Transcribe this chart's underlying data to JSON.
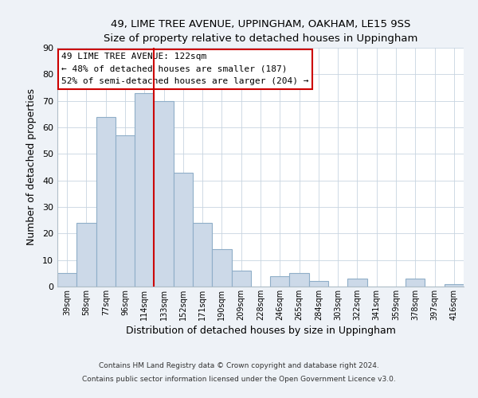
{
  "title1": "49, LIME TREE AVENUE, UPPINGHAM, OAKHAM, LE15 9SS",
  "title2": "Size of property relative to detached houses in Uppingham",
  "xlabel": "Distribution of detached houses by size in Uppingham",
  "ylabel": "Number of detached properties",
  "bar_labels": [
    "39sqm",
    "58sqm",
    "77sqm",
    "96sqm",
    "114sqm",
    "133sqm",
    "152sqm",
    "171sqm",
    "190sqm",
    "209sqm",
    "228sqm",
    "246sqm",
    "265sqm",
    "284sqm",
    "303sqm",
    "322sqm",
    "341sqm",
    "359sqm",
    "378sqm",
    "397sqm",
    "416sqm"
  ],
  "bar_values": [
    5,
    24,
    64,
    57,
    73,
    70,
    43,
    24,
    14,
    6,
    0,
    4,
    5,
    2,
    0,
    3,
    0,
    0,
    3,
    0,
    1
  ],
  "bar_color": "#ccd9e8",
  "bar_edge_color": "#8faec8",
  "vline_color": "#cc0000",
  "annotation_title": "49 LIME TREE AVENUE: 122sqm",
  "annotation_line1": "← 48% of detached houses are smaller (187)",
  "annotation_line2": "52% of semi-detached houses are larger (204) →",
  "annotation_box_color": "#ffffff",
  "annotation_box_edge": "#cc0000",
  "ylim": [
    0,
    90
  ],
  "yticks": [
    0,
    10,
    20,
    30,
    40,
    50,
    60,
    70,
    80,
    90
  ],
  "footer1": "Contains HM Land Registry data © Crown copyright and database right 2024.",
  "footer2": "Contains public sector information licensed under the Open Government Licence v3.0.",
  "bg_color": "#eef2f7",
  "plot_bg_color": "#ffffff",
  "grid_color": "#c8d4e0"
}
